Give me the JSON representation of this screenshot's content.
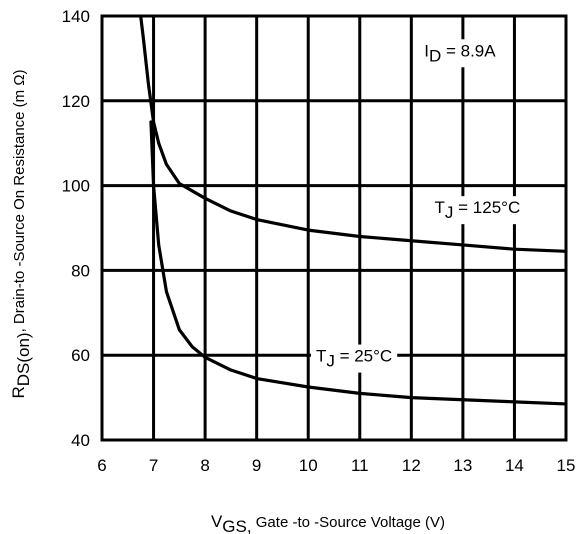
{
  "chart_data": {
    "type": "line",
    "xlim": [
      6,
      15
    ],
    "ylim": [
      40,
      140
    ],
    "x_ticks": [
      "6",
      "7",
      "8",
      "9",
      "10",
      "11",
      "12",
      "13",
      "14",
      "15"
    ],
    "y_ticks": [
      "40",
      "60",
      "80",
      "100",
      "120",
      "140"
    ],
    "grid": true,
    "xlabel": {
      "main": "V",
      "sub": "GS,",
      "rest": " Gate -to -Source Voltage  (V)"
    },
    "ylabel": {
      "main": "R",
      "sub": "DS(on)",
      "rest": ",  Drain-to -Source On Resistance (m Ω)"
    },
    "annotations": [
      {
        "id": "id-label",
        "main": "I",
        "sub": "D",
        "rest": " = 8.9A",
        "x": 12.25,
        "y": 130.5
      },
      {
        "id": "tj125-label",
        "main": "T",
        "sub": "J",
        "rest": " = 125°C",
        "x": 12.45,
        "y": 93.5
      },
      {
        "id": "tj25-label",
        "main": "T",
        "sub": "J",
        "rest": " = 25°C",
        "x": 10.15,
        "y": 58.5
      }
    ],
    "series": [
      {
        "id": "tj-125",
        "points": [
          [
            6.75,
            140
          ],
          [
            6.8,
            135
          ],
          [
            6.9,
            124
          ],
          [
            7.0,
            115
          ],
          [
            7.1,
            110
          ],
          [
            7.25,
            105
          ],
          [
            7.5,
            100.5
          ],
          [
            8.0,
            97
          ],
          [
            8.5,
            94
          ],
          [
            9.0,
            92
          ],
          [
            10.0,
            89.5
          ],
          [
            11.0,
            88
          ],
          [
            12.0,
            87
          ],
          [
            13.0,
            86
          ],
          [
            14.0,
            85
          ],
          [
            15.0,
            84.5
          ]
        ]
      },
      {
        "id": "tj-25",
        "points": [
          [
            6.95,
            115
          ],
          [
            7.0,
            100
          ],
          [
            7.1,
            86
          ],
          [
            7.25,
            75
          ],
          [
            7.5,
            66
          ],
          [
            7.75,
            62
          ],
          [
            8.0,
            59.5
          ],
          [
            8.5,
            56.5
          ],
          [
            9.0,
            54.5
          ],
          [
            10.0,
            52.5
          ],
          [
            11.0,
            51
          ],
          [
            12.0,
            50
          ],
          [
            13.0,
            49.5
          ],
          [
            14.0,
            49
          ],
          [
            15.0,
            48.5
          ]
        ]
      }
    ]
  }
}
